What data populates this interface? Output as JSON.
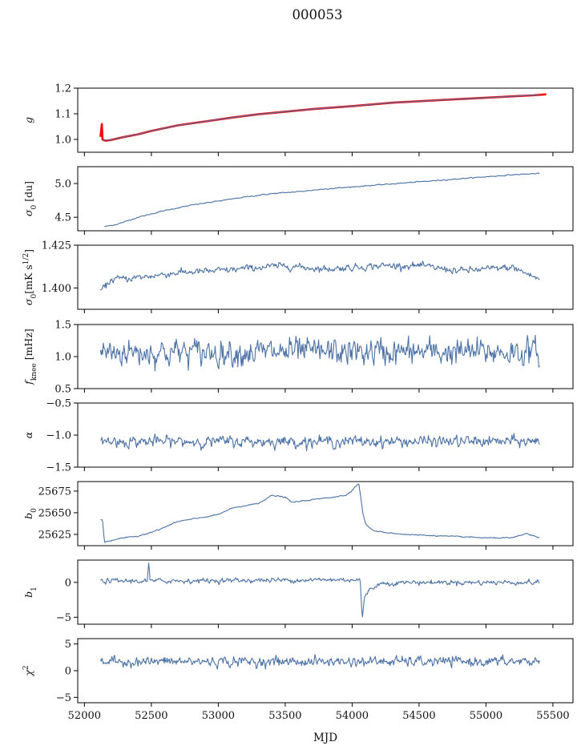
{
  "figure": {
    "title": "000053",
    "xlabel": "MJD"
  },
  "colors": {
    "series": "#4c72a6",
    "fit": "#ff0000",
    "axis": "#000000"
  },
  "chart_data": [
    {
      "type": "line",
      "ylabel": "g",
      "ylim": [
        0.95,
        1.2
      ],
      "xlim": [
        51950,
        55650
      ],
      "yticks": [
        1.0,
        1.1,
        1.2
      ],
      "ytick_labels": [
        "1.0",
        "1.1",
        "1.2"
      ],
      "xticks": [
        52000,
        52500,
        53000,
        53500,
        54000,
        54500,
        55000,
        55500
      ],
      "series": [
        {
          "role": "fit",
          "x": [
            52120,
            52130,
            52135,
            52145,
            52160,
            52200,
            52300,
            52400,
            52500,
            52700,
            52900,
            53100,
            53300,
            53500,
            53700,
            54000,
            54300,
            54600,
            54900,
            55200,
            55350,
            55450
          ],
          "y": [
            1.01,
            1.06,
            1.0,
            0.997,
            0.995,
            0.998,
            1.01,
            1.02,
            1.033,
            1.055,
            1.07,
            1.085,
            1.098,
            1.108,
            1.118,
            1.13,
            1.143,
            1.152,
            1.16,
            1.168,
            1.172,
            1.176
          ]
        },
        {
          "role": "data",
          "x": [
            52140,
            52200,
            52300,
            52400,
            52500,
            52700,
            52900,
            53100,
            53300,
            53500,
            53700,
            54000,
            54300,
            54600,
            54900,
            55200,
            55400
          ],
          "y": [
            0.997,
            0.998,
            1.01,
            1.02,
            1.033,
            1.055,
            1.07,
            1.085,
            1.098,
            1.108,
            1.118,
            1.13,
            1.143,
            1.152,
            1.16,
            1.168,
            1.174
          ]
        }
      ]
    },
    {
      "type": "line",
      "ylabel": "σ0 [du]",
      "ylim": [
        4.3,
        5.25
      ],
      "xlim": [
        51950,
        55650
      ],
      "yticks": [
        4.5,
        5.0
      ],
      "ytick_labels": [
        "4.5",
        "5.0"
      ],
      "series": [
        {
          "x": [
            52150,
            52250,
            52400,
            52600,
            52800,
            53000,
            53200,
            53400,
            53600,
            53800,
            54000,
            54200,
            54400,
            54600,
            54800,
            55000,
            55200,
            55400
          ],
          "y": [
            4.36,
            4.4,
            4.5,
            4.6,
            4.68,
            4.74,
            4.8,
            4.85,
            4.88,
            4.92,
            4.95,
            4.98,
            5.01,
            5.04,
            5.07,
            5.1,
            5.13,
            5.15
          ],
          "noise": 0.006
        }
      ]
    },
    {
      "type": "line",
      "ylabel": "σ0[mK s^1/2]",
      "ylim": [
        1.3875,
        1.425
      ],
      "xlim": [
        51950,
        55650
      ],
      "yticks": [
        1.4,
        1.425
      ],
      "ytick_labels": [
        "1.400",
        "1.425"
      ],
      "series": [
        {
          "x": [
            52120,
            52150,
            52200,
            52400,
            52700,
            53000,
            53300,
            53500,
            53800,
            54200,
            54500,
            54800,
            55000,
            55200,
            55400
          ],
          "y": [
            1.399,
            1.4,
            1.405,
            1.406,
            1.409,
            1.41,
            1.412,
            1.413,
            1.411,
            1.413,
            1.413,
            1.41,
            1.411,
            1.412,
            1.405
          ],
          "noise": 0.0016
        }
      ]
    },
    {
      "type": "line",
      "ylabel": "fknee [mHz]",
      "ylim": [
        0.5,
        1.5
      ],
      "xlim": [
        51950,
        55650
      ],
      "yticks": [
        0.5,
        1.0,
        1.5
      ],
      "ytick_labels": [
        "0.5",
        "1.0",
        "1.5"
      ],
      "series": [
        {
          "x": [
            52120,
            55400
          ],
          "y": [
            1.07,
            1.07
          ],
          "noise": 0.17
        }
      ]
    },
    {
      "type": "line",
      "ylabel": "α",
      "ylim": [
        -1.5,
        -0.5
      ],
      "xlim": [
        51950,
        55650
      ],
      "yticks": [
        -1.5,
        -1.0,
        -0.5
      ],
      "ytick_labels": [
        "−1.5",
        "−1.0",
        "−0.5"
      ],
      "series": [
        {
          "x": [
            52120,
            55400
          ],
          "y": [
            -1.1,
            -1.1
          ],
          "noise": 0.07
        }
      ]
    },
    {
      "type": "line",
      "ylabel": "b0",
      "ylim": [
        25612,
        25686
      ],
      "xlim": [
        51950,
        55650
      ],
      "yticks": [
        25625,
        25650,
        25675
      ],
      "ytick_labels": [
        "25625",
        "25650",
        "25675"
      ],
      "series": [
        {
          "x": [
            52120,
            52135,
            52150,
            52250,
            52400,
            52550,
            52700,
            52900,
            53000,
            53100,
            53300,
            53400,
            53500,
            53550,
            53650,
            53800,
            53950,
            54000,
            54050,
            54080,
            54100,
            54150,
            54200,
            54400,
            54700,
            55000,
            55200,
            55300,
            55400
          ],
          "y": [
            25642,
            25642,
            25616,
            25620,
            25623,
            25630,
            25640,
            25645,
            25648,
            25655,
            25661,
            25670,
            25668,
            25662,
            25664,
            25667,
            25670,
            25676,
            25684,
            25650,
            25637,
            25630,
            25628,
            25625,
            25623,
            25621,
            25621,
            25626,
            25621
          ],
          "noise": 0.5
        }
      ]
    },
    {
      "type": "line",
      "ylabel": "b1",
      "ylim": [
        -6,
        3.2
      ],
      "xlim": [
        51950,
        55650
      ],
      "yticks": [
        -5,
        0
      ],
      "ytick_labels": [
        "−5",
        "0"
      ],
      "series": [
        {
          "x": [
            52120,
            52470,
            52480,
            52490,
            54060,
            54075,
            54090,
            54120,
            54200,
            54400,
            55400
          ],
          "y": [
            0.2,
            0.2,
            2.8,
            0.2,
            0.4,
            -5.3,
            -2.5,
            -1.2,
            -0.2,
            0.0,
            0.0
          ],
          "noise": 0.28
        }
      ]
    },
    {
      "type": "line",
      "ylabel": "χ²",
      "ylim": [
        -6,
        6
      ],
      "xlim": [
        51950,
        55650
      ],
      "yticks": [
        -5,
        0,
        5
      ],
      "ytick_labels": [
        "−5",
        "0",
        "5"
      ],
      "xticks": [
        52000,
        52500,
        53000,
        53500,
        54000,
        54500,
        55000,
        55500
      ],
      "xtick_labels": [
        "52000",
        "52500",
        "53000",
        "53500",
        "54000",
        "54500",
        "55000",
        "55500"
      ],
      "series": [
        {
          "x": [
            52120,
            55400
          ],
          "y": [
            1.7,
            1.7
          ],
          "noise": 0.75
        }
      ]
    }
  ]
}
